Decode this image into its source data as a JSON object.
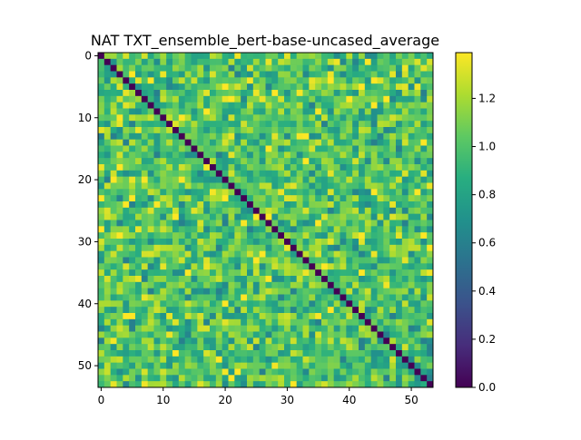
{
  "chart_data": {
    "type": "heatmap",
    "title": "NAT TXT_ensemble_bert-base-uncased_average",
    "xlabel": "",
    "ylabel": "",
    "size": 54,
    "xlim": [
      -0.5,
      53.5
    ],
    "ylim": [
      53.5,
      -0.5
    ],
    "x_ticks": [
      0,
      10,
      20,
      30,
      40,
      50
    ],
    "y_ticks": [
      0,
      10,
      20,
      30,
      40,
      50
    ],
    "diagonal_value": 0.0,
    "off_diagonal_mean": 1.0,
    "off_diagonal_range": [
      0.6,
      1.39
    ],
    "colormap": "viridis",
    "colorbar": {
      "range": [
        0.0,
        1.39
      ],
      "ticks": [
        "0.0",
        "0.2",
        "0.4",
        "0.6",
        "0.8",
        "1.0",
        "1.2"
      ],
      "tick_values": [
        0.0,
        0.2,
        0.4,
        0.6,
        0.8,
        1.0,
        1.2
      ]
    },
    "grid": false,
    "legend": "none"
  }
}
